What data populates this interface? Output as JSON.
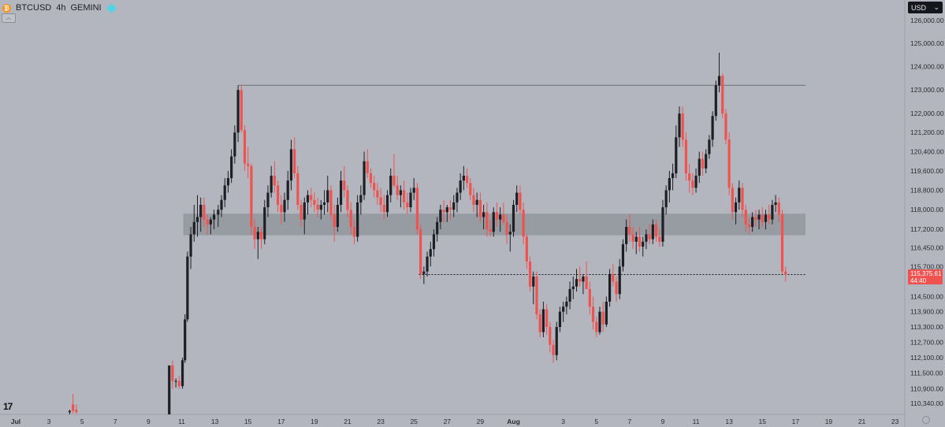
{
  "header": {
    "symbol": "BTCUSD",
    "interval": "4h",
    "exchange": "GEMINI",
    "coin_icon": "bitcoin-icon",
    "exchange_icon": "gemini-icon"
  },
  "currency_selector": {
    "label": "USD",
    "icon": "chevron-down-icon"
  },
  "price_badge": {
    "price": "115,375.61",
    "countdown": "44:40"
  },
  "colors": {
    "background": "#b3b6bf",
    "up": "#1e1f24",
    "down": "#ef5350",
    "zone": "#8e9198",
    "badge": "#ef5350"
  },
  "chart_data": {
    "type": "candlestick",
    "y_scale": "log",
    "ylim": [
      110000,
      126800
    ],
    "y_ticks": [
      "126,000.00",
      "125,000.00",
      "124,000.00",
      "123,000.00",
      "122,000.00",
      "121,200.00",
      "120,400.00",
      "119,600.00",
      "118,800.00",
      "118,000.00",
      "117,200.00",
      "116,450.00",
      "115,700.00",
      "114,500.00",
      "113,900.00",
      "113,300.00",
      "112,700.00",
      "112,100.00",
      "111,500.00",
      "110,900.00",
      "110,340.00"
    ],
    "x_labels": [
      "Jul",
      "3",
      "5",
      "7",
      "9",
      "11",
      "13",
      "15",
      "17",
      "19",
      "21",
      "23",
      "25",
      "27",
      "29",
      "Aug",
      "3",
      "5",
      "7",
      "9",
      "11",
      "13",
      "15",
      "17",
      "19",
      "21",
      "23"
    ],
    "x_label_values": [
      0,
      2,
      4,
      6,
      8,
      10,
      12,
      14,
      16,
      18,
      20,
      22,
      24,
      26,
      28,
      30,
      33,
      35,
      37,
      39,
      41,
      43,
      45,
      47,
      49,
      51,
      53
    ],
    "resistance_level": 123200,
    "support_level": 115380,
    "zone": [
      116960,
      117840
    ],
    "last_price": 115375.61,
    "candles": [
      [
        3.25,
        110000,
        110100,
        109900,
        110050
      ],
      [
        3.45,
        110300,
        110700,
        109950,
        110050
      ],
      [
        3.65,
        110100,
        110300,
        109950,
        110000
      ],
      [
        9.25,
        109000,
        111800,
        108900,
        111800
      ],
      [
        9.45,
        111800,
        112000,
        110900,
        111200
      ],
      [
        9.65,
        111200,
        111300,
        110950,
        111200
      ],
      [
        9.85,
        111200,
        111400,
        110900,
        111000
      ],
      [
        10.05,
        111000,
        112100,
        110900,
        112000
      ],
      [
        10.2,
        112000,
        113800,
        111900,
        113600
      ],
      [
        10.35,
        113600,
        116300,
        113500,
        116100
      ],
      [
        10.55,
        116100,
        117300,
        115600,
        117000
      ],
      [
        10.75,
        117000,
        118200,
        116700,
        117500
      ],
      [
        10.95,
        117500,
        118600,
        116900,
        117700
      ],
      [
        11.15,
        117700,
        118500,
        117100,
        118200
      ],
      [
        11.35,
        118200,
        118500,
        117300,
        117600
      ],
      [
        11.55,
        117600,
        117800,
        117000,
        117400
      ],
      [
        11.75,
        117400,
        117700,
        117000,
        117600
      ],
      [
        11.95,
        117600,
        118000,
        117200,
        117800
      ],
      [
        12.2,
        117800,
        118200,
        117300,
        118000
      ],
      [
        12.4,
        118000,
        118600,
        117700,
        118400
      ],
      [
        12.6,
        118400,
        119300,
        118100,
        119000
      ],
      [
        12.8,
        119000,
        119600,
        118700,
        119300
      ],
      [
        13.0,
        119300,
        120500,
        119100,
        120200
      ],
      [
        13.2,
        120200,
        121500,
        119900,
        121200
      ],
      [
        13.4,
        121200,
        123200,
        120800,
        123000
      ],
      [
        13.6,
        123000,
        123200,
        121200,
        121300
      ],
      [
        13.8,
        121300,
        121500,
        119600,
        119900
      ],
      [
        14.0,
        119900,
        120600,
        119300,
        119800
      ],
      [
        14.2,
        119800,
        119900,
        117000,
        117300
      ],
      [
        14.4,
        117300,
        117600,
        116400,
        116800
      ],
      [
        14.6,
        116800,
        117300,
        116000,
        117100
      ],
      [
        14.8,
        117100,
        117300,
        116400,
        116800
      ],
      [
        15.0,
        116800,
        118400,
        116600,
        118100
      ],
      [
        15.2,
        118100,
        119000,
        117700,
        118700
      ],
      [
        15.4,
        118700,
        119800,
        118500,
        119400
      ],
      [
        15.6,
        119400,
        120000,
        118700,
        119000
      ],
      [
        15.8,
        119000,
        119200,
        117900,
        118200
      ],
      [
        16.0,
        118200,
        118600,
        117400,
        117900
      ],
      [
        16.2,
        117900,
        118700,
        117500,
        118400
      ],
      [
        16.4,
        118400,
        119600,
        118000,
        119200
      ],
      [
        16.6,
        119200,
        120900,
        118800,
        120500
      ],
      [
        16.8,
        120500,
        121000,
        119300,
        119500
      ],
      [
        17.0,
        119500,
        119800,
        118000,
        118200
      ],
      [
        17.2,
        118200,
        118400,
        117300,
        117600
      ],
      [
        17.4,
        117600,
        118500,
        117000,
        118300
      ],
      [
        17.6,
        118300,
        118800,
        117800,
        118600
      ],
      [
        17.8,
        118600,
        118900,
        118100,
        118400
      ],
      [
        18.0,
        118400,
        118700,
        117900,
        118200
      ],
      [
        18.2,
        118200,
        118500,
        117700,
        118000
      ],
      [
        18.4,
        118000,
        118400,
        117600,
        118200
      ],
      [
        18.6,
        118200,
        118800,
        117800,
        118300
      ],
      [
        18.8,
        118300,
        119400,
        117900,
        118800
      ],
      [
        19.0,
        118800,
        119000,
        117600,
        117800
      ],
      [
        19.2,
        117800,
        118200,
        116700,
        117300
      ],
      [
        19.4,
        117300,
        118500,
        117100,
        118200
      ],
      [
        19.6,
        118200,
        119600,
        117900,
        119200
      ],
      [
        19.8,
        119200,
        119800,
        118500,
        118800
      ],
      [
        20.0,
        118800,
        119000,
        117700,
        118000
      ],
      [
        20.2,
        118000,
        118300,
        117000,
        117300
      ],
      [
        20.4,
        117300,
        117600,
        116600,
        116900
      ],
      [
        20.6,
        116900,
        118600,
        116700,
        118300
      ],
      [
        20.8,
        118300,
        119000,
        117800,
        118600
      ],
      [
        21.0,
        118600,
        120400,
        118400,
        120000
      ],
      [
        21.2,
        120000,
        120500,
        119300,
        119500
      ],
      [
        21.4,
        119500,
        119700,
        118900,
        119100
      ],
      [
        21.6,
        119100,
        119400,
        118500,
        118800
      ],
      [
        21.8,
        118800,
        119100,
        118200,
        118500
      ],
      [
        22.0,
        118500,
        118900,
        117900,
        118200
      ],
      [
        22.2,
        118200,
        118600,
        117600,
        117900
      ],
      [
        22.4,
        117900,
        118800,
        117700,
        118600
      ],
      [
        22.6,
        118600,
        119700,
        118300,
        119400
      ],
      [
        22.8,
        119400,
        120300,
        118900,
        119000
      ],
      [
        23.0,
        119000,
        119400,
        118400,
        118600
      ],
      [
        23.2,
        118600,
        119000,
        118100,
        118800
      ],
      [
        23.4,
        118800,
        119200,
        118000,
        118300
      ],
      [
        23.6,
        118300,
        118700,
        117800,
        118100
      ],
      [
        23.8,
        118100,
        118900,
        117900,
        118700
      ],
      [
        24.0,
        118700,
        119300,
        118400,
        118900
      ],
      [
        24.2,
        118900,
        119100,
        117000,
        117200
      ],
      [
        24.4,
        117200,
        117400,
        115200,
        115400
      ],
      [
        24.6,
        115400,
        115700,
        115000,
        115500
      ],
      [
        24.8,
        115500,
        116300,
        115300,
        116100
      ],
      [
        25.0,
        116100,
        116700,
        115700,
        116400
      ],
      [
        25.2,
        116400,
        117200,
        116100,
        117000
      ],
      [
        25.4,
        117000,
        117700,
        116700,
        117500
      ],
      [
        25.6,
        117500,
        118200,
        117200,
        118000
      ],
      [
        25.8,
        118000,
        118400,
        117500,
        117900
      ],
      [
        26.0,
        117900,
        118200,
        117500,
        118100
      ],
      [
        26.2,
        118100,
        118400,
        117600,
        118000
      ],
      [
        26.4,
        118000,
        118600,
        117700,
        118300
      ],
      [
        26.6,
        118300,
        118900,
        117900,
        118700
      ],
      [
        26.8,
        118700,
        119500,
        118400,
        119200
      ],
      [
        27.0,
        119200,
        119800,
        118800,
        119400
      ],
      [
        27.2,
        119400,
        119700,
        118900,
        119100
      ],
      [
        27.4,
        119100,
        119300,
        118400,
        118600
      ],
      [
        27.6,
        118600,
        118900,
        117900,
        118200
      ],
      [
        27.8,
        118200,
        118700,
        117700,
        118400
      ],
      [
        28.0,
        118400,
        118700,
        117500,
        117700
      ],
      [
        28.2,
        117700,
        118200,
        117200,
        117900
      ],
      [
        28.4,
        117900,
        118300,
        116900,
        117200
      ],
      [
        28.6,
        117200,
        117600,
        116900,
        117100
      ],
      [
        28.8,
        117100,
        118100,
        116900,
        117900
      ],
      [
        29.0,
        117900,
        118300,
        117300,
        117600
      ],
      [
        29.2,
        117600,
        118100,
        117100,
        117800
      ],
      [
        29.4,
        117800,
        118300,
        117400,
        117500
      ],
      [
        29.6,
        117500,
        117800,
        116600,
        117000
      ],
      [
        29.8,
        117000,
        117400,
        116300,
        117100
      ],
      [
        30.0,
        117100,
        118400,
        116900,
        118200
      ],
      [
        30.2,
        118200,
        119000,
        117900,
        118700
      ],
      [
        30.4,
        118700,
        119000,
        117800,
        118000
      ],
      [
        30.6,
        118000,
        118300,
        116600,
        116900
      ],
      [
        30.8,
        116900,
        117000,
        115600,
        115900
      ],
      [
        31.0,
        115900,
        116100,
        114700,
        114900
      ],
      [
        31.2,
        114900,
        115500,
        114200,
        115300
      ],
      [
        31.4,
        115300,
        115500,
        113600,
        113800
      ],
      [
        31.6,
        113800,
        114000,
        112900,
        113100
      ],
      [
        31.8,
        113100,
        114300,
        112900,
        114000
      ],
      [
        32.0,
        114000,
        114200,
        113000,
        113300
      ],
      [
        32.2,
        113300,
        113500,
        112300,
        112600
      ],
      [
        32.4,
        112600,
        112800,
        111900,
        112200
      ],
      [
        32.6,
        112200,
        113500,
        112000,
        113300
      ],
      [
        32.8,
        113300,
        114100,
        113100,
        113900
      ],
      [
        33.0,
        113900,
        114300,
        113500,
        114100
      ],
      [
        33.2,
        114100,
        114500,
        113800,
        114300
      ],
      [
        33.4,
        114300,
        115100,
        114000,
        114800
      ],
      [
        33.6,
        114800,
        115300,
        114400,
        114900
      ],
      [
        33.8,
        114900,
        115600,
        114700,
        115200
      ],
      [
        34.0,
        115200,
        115700,
        114900,
        115100
      ],
      [
        34.2,
        115100,
        115400,
        114600,
        115300
      ],
      [
        34.4,
        115300,
        115900,
        114800,
        114800
      ],
      [
        34.6,
        114800,
        115100,
        113800,
        114100
      ],
      [
        34.8,
        114100,
        114500,
        113200,
        113500
      ],
      [
        35.0,
        113500,
        113700,
        112900,
        113100
      ],
      [
        35.2,
        113100,
        114100,
        113000,
        113900
      ],
      [
        35.4,
        113900,
        114300,
        113100,
        113400
      ],
      [
        35.6,
        113400,
        114500,
        113300,
        114300
      ],
      [
        35.8,
        114300,
        115600,
        114100,
        115400
      ],
      [
        36.0,
        115400,
        115800,
        114900,
        115100
      ],
      [
        36.2,
        115100,
        115300,
        114300,
        114600
      ],
      [
        36.4,
        114600,
        116000,
        114400,
        115700
      ],
      [
        36.6,
        115700,
        116800,
        115500,
        116600
      ],
      [
        36.8,
        116600,
        117600,
        116300,
        117300
      ],
      [
        37.0,
        117300,
        117800,
        116700,
        117000
      ],
      [
        37.2,
        117000,
        117300,
        116400,
        116700
      ],
      [
        37.4,
        116700,
        117100,
        116200,
        116900
      ],
      [
        37.6,
        116900,
        117300,
        116300,
        116500
      ],
      [
        37.8,
        116500,
        116900,
        116100,
        116700
      ],
      [
        38.0,
        116700,
        117200,
        116400,
        117000
      ],
      [
        38.2,
        117000,
        117400,
        116600,
        116800
      ],
      [
        38.4,
        116800,
        117600,
        116600,
        117400
      ],
      [
        38.6,
        117400,
        117600,
        116700,
        116900
      ],
      [
        38.8,
        116900,
        117200,
        116500,
        116700
      ],
      [
        39.0,
        116700,
        118400,
        116500,
        118100
      ],
      [
        39.2,
        118100,
        119000,
        117800,
        118800
      ],
      [
        39.4,
        118800,
        119600,
        118300,
        119300
      ],
      [
        39.6,
        119300,
        119900,
        118800,
        119500
      ],
      [
        39.8,
        119500,
        121500,
        119300,
        121000
      ],
      [
        40.0,
        121000,
        122300,
        120600,
        122000
      ],
      [
        40.2,
        122000,
        122300,
        120600,
        120900
      ],
      [
        40.4,
        120900,
        121200,
        119200,
        119500
      ],
      [
        40.6,
        119500,
        119900,
        118700,
        119200
      ],
      [
        40.8,
        119200,
        119500,
        118600,
        118900
      ],
      [
        41.0,
        118900,
        119700,
        118700,
        119400
      ],
      [
        41.2,
        119400,
        120400,
        119100,
        120100
      ],
      [
        41.4,
        120100,
        120400,
        119400,
        119700
      ],
      [
        41.6,
        119700,
        120500,
        119500,
        120300
      ],
      [
        41.8,
        120300,
        121100,
        120100,
        120900
      ],
      [
        42.0,
        120900,
        122100,
        120600,
        121900
      ],
      [
        42.2,
        121900,
        123400,
        121700,
        123200
      ],
      [
        42.4,
        123200,
        124600,
        122900,
        123600
      ],
      [
        42.6,
        123600,
        123700,
        121800,
        122000
      ],
      [
        42.8,
        122000,
        122200,
        120700,
        120900
      ],
      [
        43.0,
        120900,
        121200,
        118600,
        118900
      ],
      [
        43.2,
        118900,
        119100,
        117600,
        117900
      ],
      [
        43.4,
        117900,
        118500,
        117400,
        118300
      ],
      [
        43.6,
        118300,
        119200,
        118000,
        118900
      ],
      [
        43.8,
        118900,
        119100,
        117700,
        118000
      ],
      [
        44.0,
        118000,
        118200,
        117100,
        117400
      ],
      [
        44.2,
        117400,
        117700,
        117000,
        117300
      ],
      [
        44.4,
        117300,
        117900,
        117100,
        117700
      ],
      [
        44.6,
        117700,
        118000,
        117300,
        117600
      ],
      [
        44.8,
        117600,
        118000,
        117200,
        117800
      ],
      [
        45.0,
        117800,
        118100,
        117300,
        117500
      ],
      [
        45.2,
        117500,
        118000,
        117200,
        117800
      ],
      [
        45.4,
        117800,
        118200,
        117400,
        117600
      ],
      [
        45.6,
        117600,
        118400,
        117400,
        118200
      ],
      [
        45.8,
        118200,
        118600,
        117900,
        118300
      ],
      [
        46.0,
        118300,
        118500,
        117500,
        117800
      ],
      [
        46.2,
        117800,
        118000,
        115400,
        115500
      ],
      [
        46.4,
        115500,
        115700,
        115100,
        115380
      ]
    ]
  }
}
